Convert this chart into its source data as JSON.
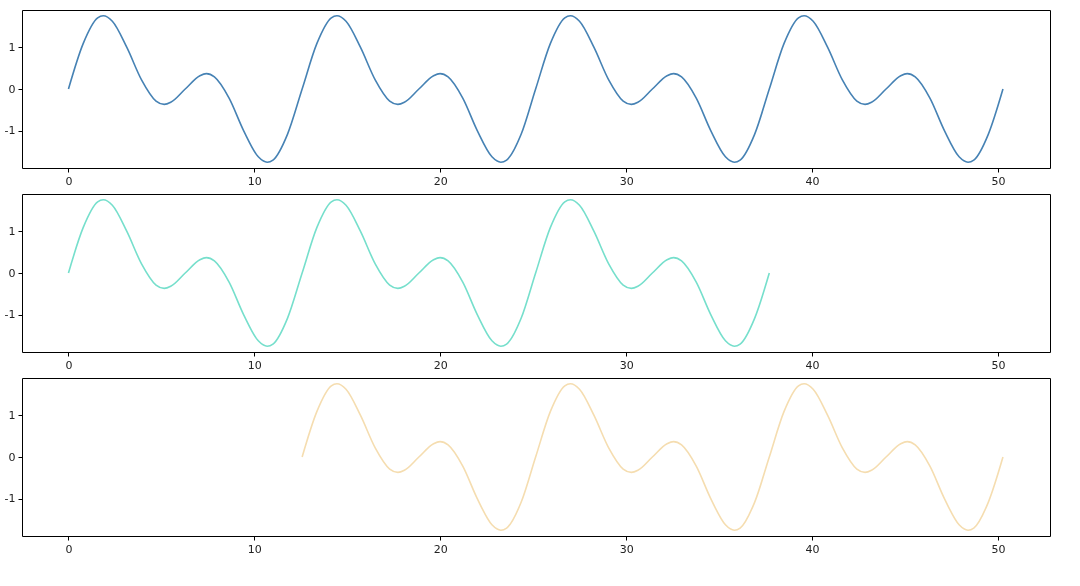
{
  "chart_data": [
    {
      "type": "line",
      "xlim": [
        -2.5,
        52.8
      ],
      "ylim": [
        -1.9,
        1.9
      ],
      "xticks": [
        0,
        10,
        20,
        30,
        40,
        50
      ],
      "yticks": [
        -1,
        0,
        1
      ],
      "grid": false,
      "series": [
        {
          "color": "#4682b4",
          "x": [
            0,
            0.79,
            1.57,
            1.87,
            2.36,
            3.14,
            3.93,
            4.71,
            5.15,
            5.5,
            6.28,
            7.07,
            7.42,
            7.85,
            8.64,
            9.42,
            10.21,
            10.69,
            11,
            11.78,
            12.57,
            13.36,
            14.14,
            14.44,
            14.93,
            15.71,
            16.5,
            17.28,
            17.72,
            18.07,
            18.85,
            19.64,
            19.99,
            20.42,
            21.21,
            21.99,
            22.78,
            23.26,
            23.57,
            24.35,
            25.13,
            25.92,
            26.7,
            27,
            27.49,
            28.27,
            29.06,
            29.84,
            30.28,
            30.63,
            31.41,
            32.2,
            32.55,
            32.98,
            33.77,
            34.55,
            35.34,
            35.82,
            36.13,
            36.91,
            37.7,
            38.49,
            39.27,
            39.57,
            40.06,
            40.84,
            41.63,
            42.41,
            42.85,
            43.2,
            43.98,
            44.77,
            45.12,
            45.55,
            46.34,
            47.12,
            47.91,
            48.39,
            48.7,
            49.48,
            50.27
          ],
          "values": [
            0,
            1.09,
            1.71,
            1.76,
            1.63,
            1,
            0.22,
            -0.29,
            -0.37,
            -0.32,
            0,
            0.32,
            0.37,
            0.29,
            -0.22,
            -1,
            -1.63,
            -1.76,
            -1.71,
            -1.09,
            0,
            1.09,
            1.71,
            1.76,
            1.63,
            1,
            0.22,
            -0.29,
            -0.37,
            -0.32,
            0,
            0.32,
            0.37,
            0.29,
            -0.22,
            -1,
            -1.63,
            -1.76,
            -1.71,
            -1.09,
            0,
            1.09,
            1.71,
            1.76,
            1.63,
            1,
            0.22,
            -0.29,
            -0.37,
            -0.32,
            0,
            0.32,
            0.37,
            0.29,
            -0.22,
            -1,
            -1.63,
            -1.76,
            -1.71,
            -1.09,
            0,
            1.09,
            1.71,
            1.76,
            1.63,
            1,
            0.22,
            -0.29,
            -0.37,
            -0.32,
            0,
            0.32,
            0.37,
            0.29,
            -0.22,
            -1,
            -1.63,
            -1.76,
            -1.71,
            -1.09,
            0
          ]
        }
      ]
    },
    {
      "type": "line",
      "xlim": [
        -2.5,
        52.8
      ],
      "ylim": [
        -1.9,
        1.9
      ],
      "xticks": [
        0,
        10,
        20,
        30,
        40,
        50
      ],
      "yticks": [
        -1,
        0,
        1
      ],
      "grid": false,
      "series": [
        {
          "color": "#76dfcc",
          "x": [
            0,
            0.79,
            1.57,
            1.87,
            2.36,
            3.14,
            3.93,
            4.71,
            5.15,
            5.5,
            6.28,
            7.07,
            7.42,
            7.85,
            8.64,
            9.42,
            10.21,
            10.69,
            11,
            11.78,
            12.57,
            13.36,
            14.14,
            14.44,
            14.93,
            15.71,
            16.5,
            17.28,
            17.72,
            18.07,
            18.85,
            19.64,
            19.99,
            20.42,
            21.21,
            21.99,
            22.78,
            23.26,
            23.57,
            24.35,
            25.13,
            25.92,
            26.7,
            27,
            27.49,
            28.27,
            29.06,
            29.84,
            30.28,
            30.63,
            31.41,
            32.2,
            32.55,
            32.98,
            33.77,
            34.55,
            35.34,
            35.82,
            36.13,
            36.91,
            37.7
          ],
          "values": [
            0,
            1.09,
            1.71,
            1.76,
            1.63,
            1,
            0.22,
            -0.29,
            -0.37,
            -0.32,
            0,
            0.32,
            0.37,
            0.29,
            -0.22,
            -1,
            -1.63,
            -1.76,
            -1.71,
            -1.09,
            0,
            1.09,
            1.71,
            1.76,
            1.63,
            1,
            0.22,
            -0.29,
            -0.37,
            -0.32,
            0,
            0.32,
            0.37,
            0.29,
            -0.22,
            -1,
            -1.63,
            -1.76,
            -1.71,
            -1.09,
            0,
            1.09,
            1.71,
            1.76,
            1.63,
            1,
            0.22,
            -0.29,
            -0.37,
            -0.32,
            0,
            0.32,
            0.37,
            0.29,
            -0.22,
            -1,
            -1.63,
            -1.76,
            -1.71,
            -1.09,
            0
          ]
        }
      ]
    },
    {
      "type": "line",
      "xlim": [
        -2.5,
        52.8
      ],
      "ylim": [
        -1.9,
        1.9
      ],
      "xticks": [
        0,
        10,
        20,
        30,
        40,
        50
      ],
      "yticks": [
        -1,
        0,
        1
      ],
      "grid": false,
      "series": [
        {
          "color": "#f5ddb0",
          "x": [
            12.57,
            13.36,
            14.14,
            14.44,
            14.93,
            15.71,
            16.5,
            17.28,
            17.72,
            18.07,
            18.85,
            19.64,
            19.99,
            20.42,
            21.21,
            21.99,
            22.78,
            23.26,
            23.57,
            24.35,
            25.13,
            25.92,
            26.7,
            27,
            27.49,
            28.27,
            29.06,
            29.84,
            30.28,
            30.63,
            31.41,
            32.2,
            32.55,
            32.98,
            33.77,
            34.55,
            35.34,
            35.82,
            36.13,
            36.91,
            37.7,
            38.49,
            39.27,
            39.57,
            40.06,
            40.84,
            41.63,
            42.41,
            42.85,
            43.2,
            43.98,
            44.77,
            45.12,
            45.55,
            46.34,
            47.12,
            47.91,
            48.39,
            48.7,
            49.48,
            50.27
          ],
          "values": [
            0,
            1.09,
            1.71,
            1.76,
            1.63,
            1,
            0.22,
            -0.29,
            -0.37,
            -0.32,
            0,
            0.32,
            0.37,
            0.29,
            -0.22,
            -1,
            -1.63,
            -1.76,
            -1.71,
            -1.09,
            0,
            1.09,
            1.71,
            1.76,
            1.63,
            1,
            0.22,
            -0.29,
            -0.37,
            -0.32,
            0,
            0.32,
            0.37,
            0.29,
            -0.22,
            -1,
            -1.63,
            -1.76,
            -1.71,
            -1.09,
            0,
            1.09,
            1.71,
            1.76,
            1.63,
            1,
            0.22,
            -0.29,
            -0.37,
            -0.32,
            0,
            0.32,
            0.37,
            0.29,
            -0.22,
            -1,
            -1.63,
            -1.76,
            -1.71,
            -1.09,
            0
          ]
        }
      ]
    }
  ]
}
